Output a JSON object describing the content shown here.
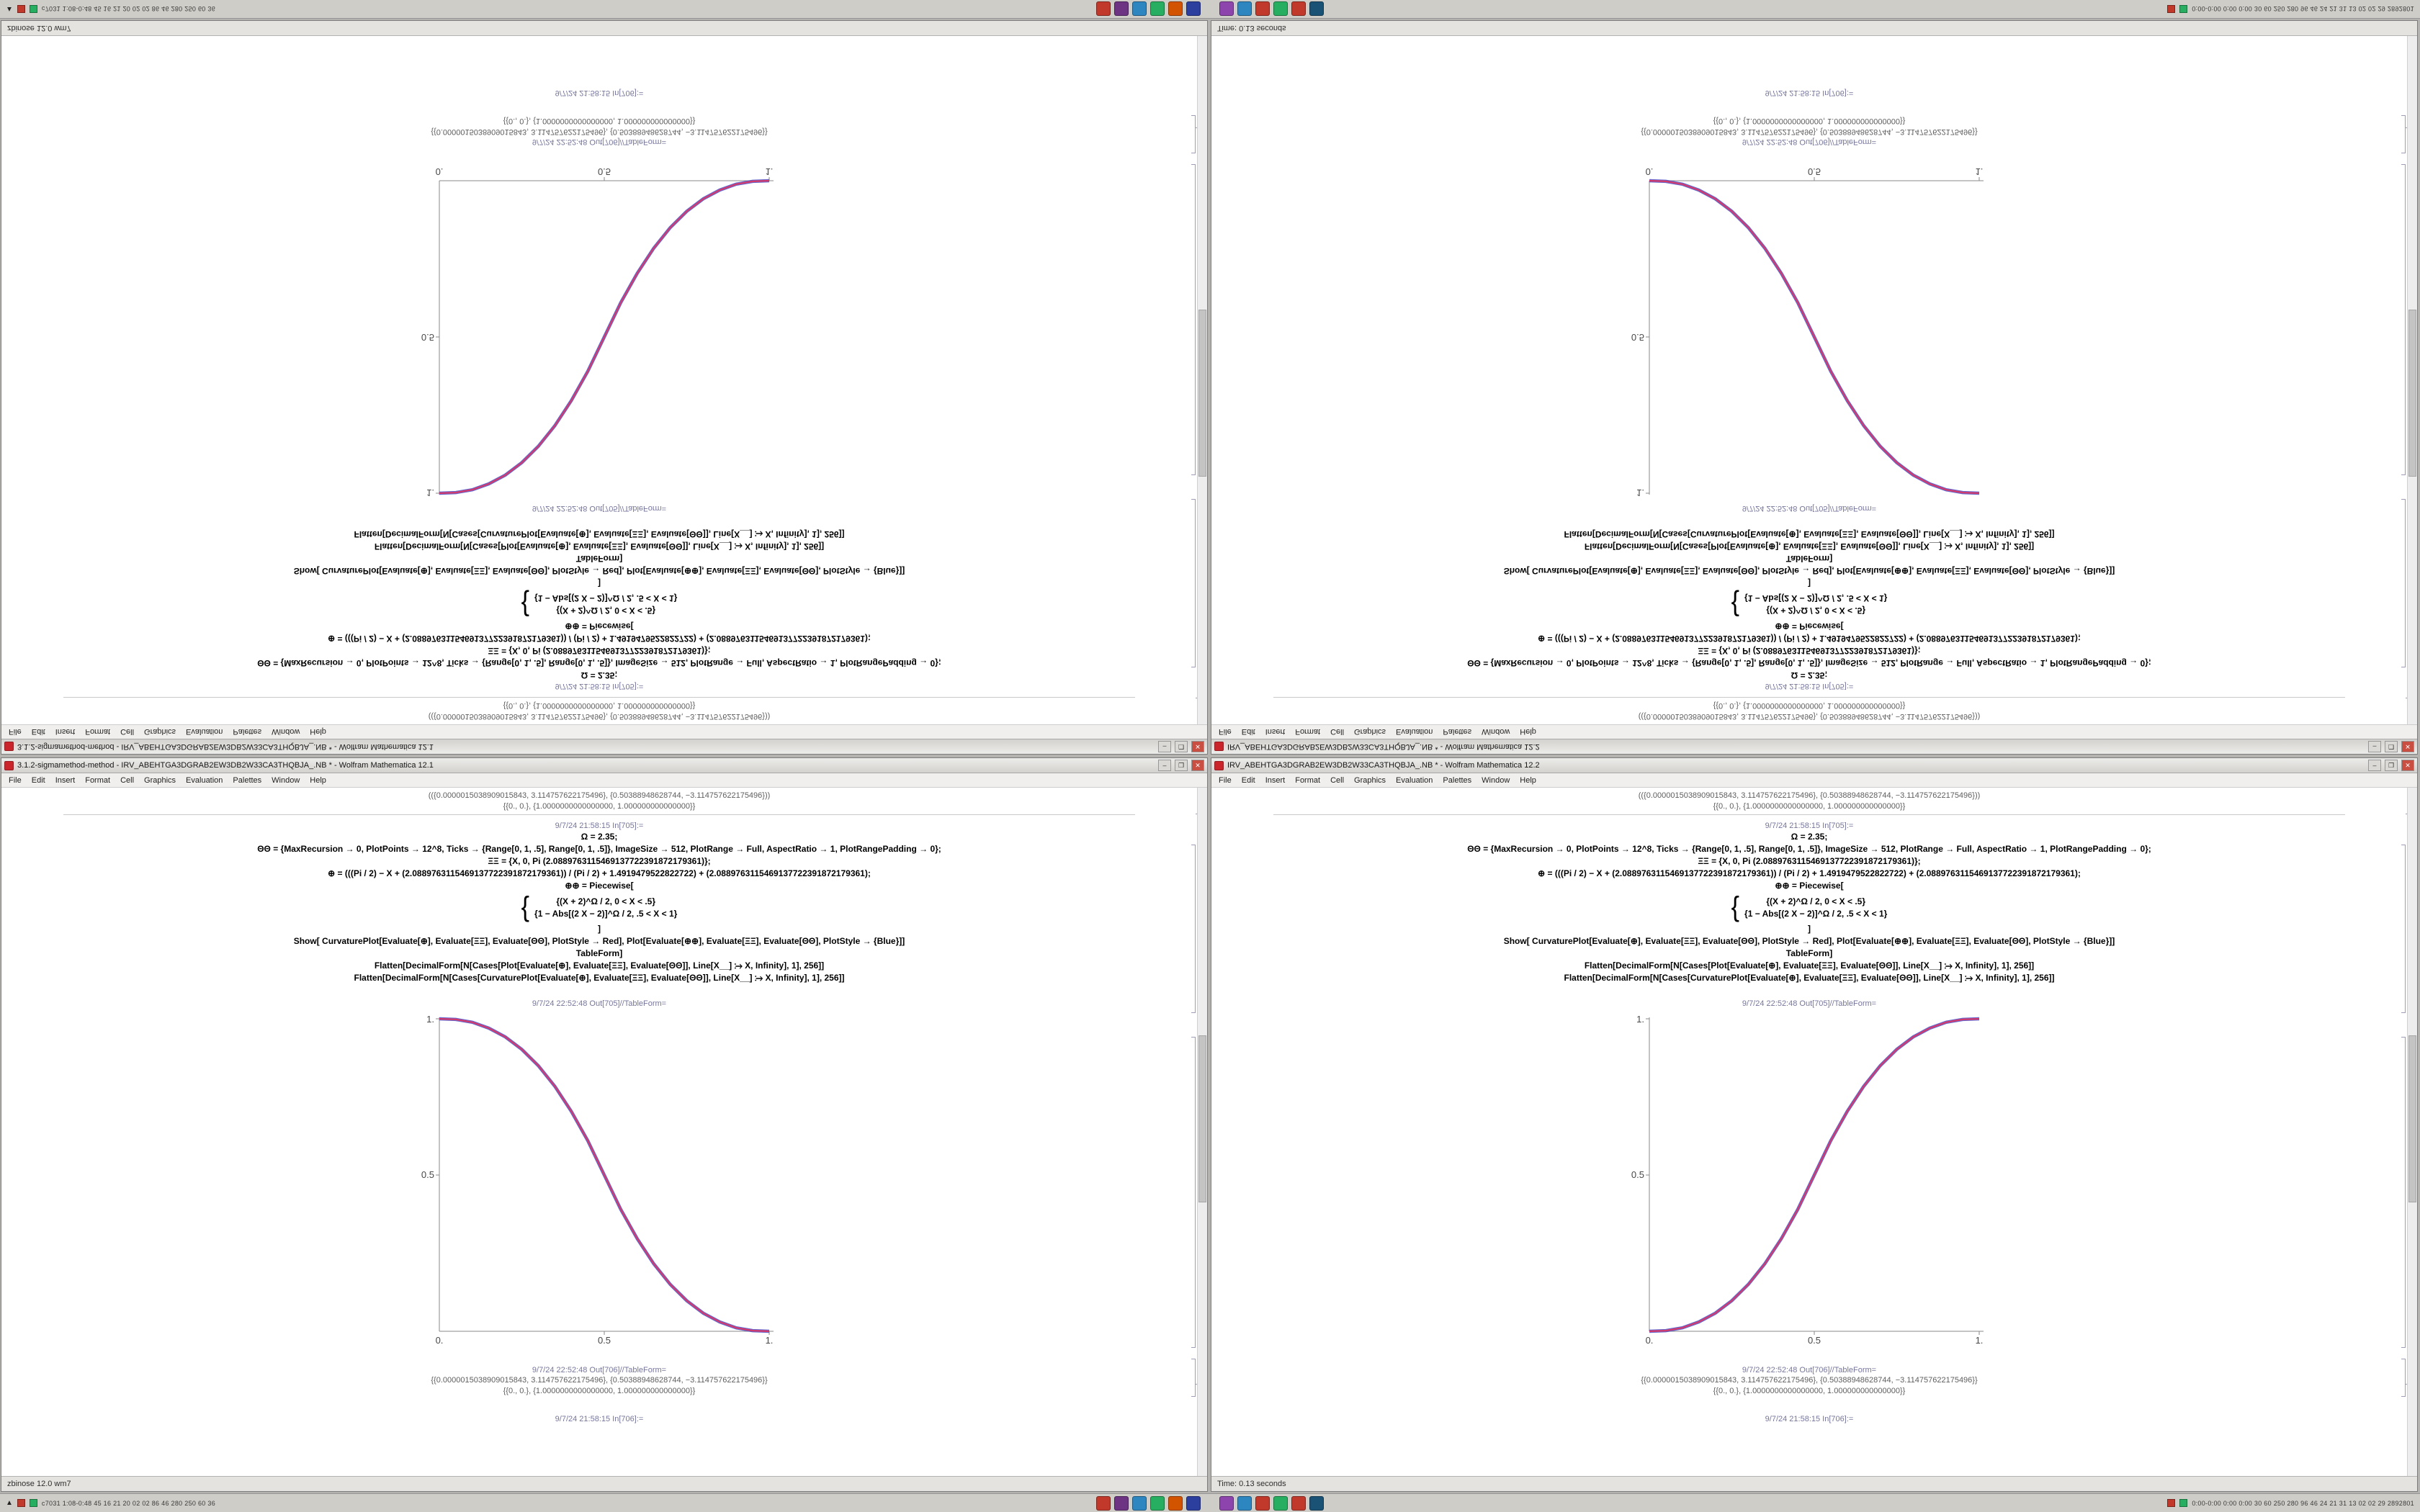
{
  "chrome": {
    "minimize": "–",
    "maximize": "❐",
    "close": "✕"
  },
  "menu": {
    "items": [
      "File",
      "Edit",
      "Insert",
      "Format",
      "Cell",
      "Graphics",
      "Evaluation",
      "Palettes",
      "Window",
      "Help"
    ]
  },
  "windows": {
    "left": {
      "title": "3.1.2-sigmamethod-method - IRV_ABEHTGA3DGRAB2EW3DB2W33CA3THQBJA_.NB * - Wolfram Mathematica 12.1",
      "status": "zbinose 12.0 wm7"
    },
    "right": {
      "title": "IRV_ABEHTGA3DGRAB2EW3DB2W33CA3THQBJA_.NB * - Wolfram Mathematica 12.2",
      "status": "Time: 0.13 seconds"
    }
  },
  "notebook": {
    "prev_output": [
      "(({0.0000015038909015843, 3.114757622175496}, {0.50388948628744, −3.114757622175496}))",
      "{{0., 0.}, {1.0000000000000000, 1.000000000000000}}"
    ],
    "in_label": "9/7/24 21:58:15 In[705]:=",
    "code": {
      "l1": "Ω = 2.35;",
      "l2": "ΘΘ = {MaxRecursion → 0, PlotPoints → 12^8, Ticks → {Range[0, 1, .5], Range[0, 1, .5]}, ImageSize → 512, PlotRange → Full, AspectRatio → 1, PlotRangePadding → 0};",
      "l3": "ΞΞ = {X, 0, Pi (2.0889763115469137722391872179361)};",
      "l4": "⊕ = (((Pi / 2) − X + (2.0889763115469137722391872179361)) / (Pi / 2) + 1.4919479522822722) + (2.0889763115469137722391872179361);",
      "l5": "⊕⊕ = Piecewise[",
      "brace": "{",
      "l6": "{(X + 2)^Ω / 2, 0 < X < .5}",
      "l7": "{1 − Abs[(2 X − 2)]^Ω / 2, .5 < X < 1}",
      "l8": "]",
      "l9": "Show[ CurvaturePlot[Evaluate[⊕], Evaluate[ΞΞ], Evaluate[ΘΘ], PlotStyle → Red], Plot[Evaluate[⊕⊕], Evaluate[ΞΞ], Evaluate[ΘΘ], PlotStyle → {Blue}]]",
      "l10": "TableForm]",
      "l11": "Flatten[DecimalForm[N[Cases[Plot[Evaluate[⊕], Evaluate[ΞΞ], Evaluate[ΘΘ]], Line[X__] ⧴ X, Infinity], 1], 256]]",
      "l12": "Flatten[DecimalForm[N[Cases[CurvaturePlot[Evaluate[⊕], Evaluate[ΞΞ], Evaluate[ΘΘ]], Line[X__] ⧴ X, Infinity], 1], 256]]"
    },
    "out_label_1": "9/7/24 22:52:48 Out[705]//TableForm=",
    "out_label_2": "9/7/24 22:52:48 Out[706]//TableForm=",
    "result_lines": [
      "{{0.0000015038909015843, 3.114757622175496}, {0.50388948628744, −3.114757622175496}}",
      "{{0., 0.}, {1.0000000000000000, 1.000000000000000}}"
    ],
    "next_in_label": "9/7/24 21:58:15 In[706]:="
  },
  "taskbar": {
    "show_desktop": "▲",
    "left_stats": "c7031  1:08-0:48 45 16 21 20 02 02 86 46 280 250 60 36",
    "right_stats": "0:00-0:00 0:00 0:00 30 60 250 280 96 46 24 21 31 13 02 02 29 2892801",
    "group_a_colors": [
      "#c0392b",
      "#6c3483",
      "#2e86c1",
      "#27ae60",
      "#d35400",
      "#2c3e9e"
    ],
    "group_b_colors": [
      "#8e44ad",
      "#2e86c1",
      "#c0392b",
      "#27ae60",
      "#c0392b",
      "#1a5276"
    ]
  },
  "chart_data": {
    "type": "line",
    "title": "",
    "xlabel": "",
    "ylabel": "",
    "xlim": [
      0,
      1
    ],
    "ylim": [
      0,
      1
    ],
    "grid": false,
    "legend": "none",
    "x_tick_labels": [
      "0.",
      "0.5",
      "1."
    ],
    "y_tick_labels": [
      "1.",
      "0.5"
    ],
    "x": [
      0,
      0.05,
      0.1,
      0.15,
      0.2,
      0.25,
      0.3,
      0.35,
      0.4,
      0.45,
      0.5,
      0.55,
      0.6,
      0.65,
      0.7,
      0.75,
      0.8,
      0.85,
      0.9,
      0.95,
      1
    ],
    "y_ascending": [
      0,
      0.002,
      0.011,
      0.03,
      0.058,
      0.098,
      0.15,
      0.216,
      0.296,
      0.39,
      0.5,
      0.61,
      0.704,
      0.784,
      0.85,
      0.902,
      0.942,
      0.97,
      0.989,
      0.998,
      1
    ],
    "y_descending": [
      1,
      0.998,
      0.989,
      0.97,
      0.942,
      0.902,
      0.85,
      0.784,
      0.704,
      0.61,
      0.5,
      0.39,
      0.296,
      0.216,
      0.15,
      0.098,
      0.058,
      0.03,
      0.011,
      0.002,
      0
    ],
    "series": [
      {
        "name": "CurvaturePlot",
        "color": "#d43a6a"
      },
      {
        "name": "Plot",
        "color": "#4040c0"
      }
    ],
    "instances": [
      {
        "window": "left",
        "direction": "descending"
      },
      {
        "window": "right",
        "direction": "ascending"
      }
    ]
  }
}
